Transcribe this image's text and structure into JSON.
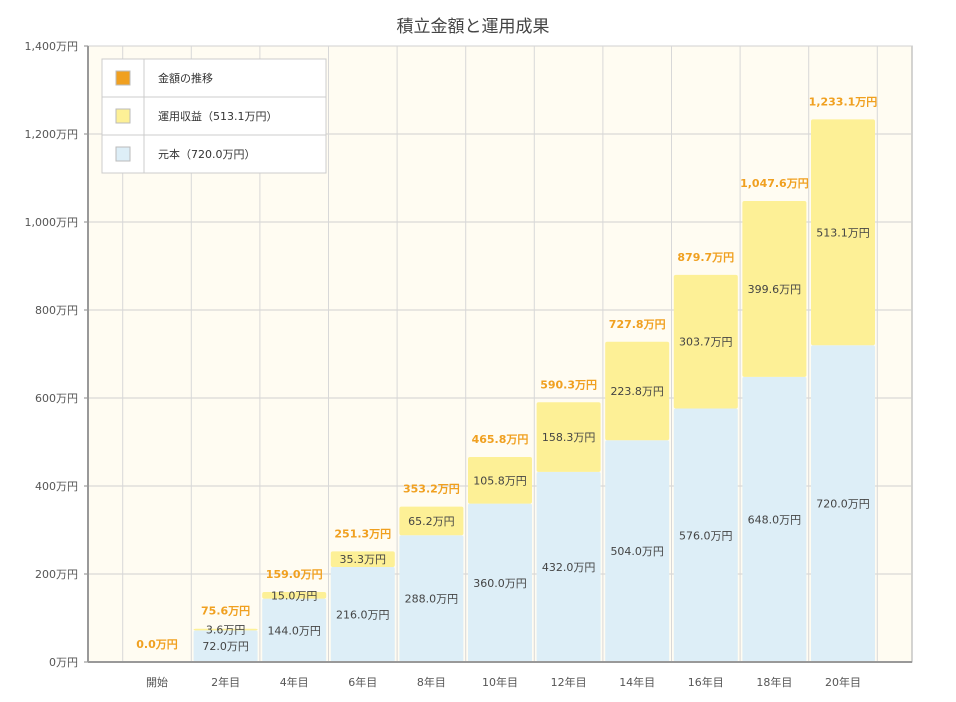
{
  "chart_data": {
    "type": "bar",
    "stacked": true,
    "title": "積立金額と運用成果",
    "categories": [
      "開始",
      "2年目",
      "4年目",
      "6年目",
      "8年目",
      "10年目",
      "12年目",
      "14年目",
      "16年目",
      "18年目",
      "20年目"
    ],
    "ylim": [
      0,
      1400
    ],
    "yticks": [
      0,
      200,
      400,
      600,
      800,
      1000,
      1200,
      1400
    ],
    "ytick_labels": [
      "0万円",
      "200万円",
      "400万円",
      "600万円",
      "800万円",
      "1,000万円",
      "1,200万円",
      "1,400万円"
    ],
    "series": [
      {
        "name": "元本（720.0万円）",
        "color": "#ddeef7",
        "values": [
          0,
          72.0,
          144.0,
          216.0,
          288.0,
          360.0,
          432.0,
          504.0,
          576.0,
          648.0,
          720.0
        ],
        "labels": [
          "",
          "72.0万円",
          "144.0万円",
          "216.0万円",
          "288.0万円",
          "360.0万円",
          "432.0万円",
          "504.0万円",
          "576.0万円",
          "648.0万円",
          "720.0万円"
        ]
      },
      {
        "name": "運用収益（513.1万円）",
        "color": "#fdf096",
        "values": [
          0,
          3.6,
          15.0,
          35.3,
          65.2,
          105.8,
          158.3,
          223.8,
          303.7,
          399.6,
          513.1
        ],
        "labels": [
          "",
          "3.6万円",
          "15.0万円",
          "35.3万円",
          "65.2万円",
          "105.8万円",
          "158.3万円",
          "223.8万円",
          "303.7万円",
          "399.6万円",
          "513.1万円"
        ]
      }
    ],
    "totals": {
      "name": "金額の推移",
      "color": "#f0a020",
      "values": [
        0.0,
        75.6,
        159.0,
        251.3,
        353.2,
        465.8,
        590.3,
        727.8,
        879.7,
        1047.6,
        1233.1
      ],
      "labels": [
        "0.0万円",
        "75.6万円",
        "159.0万円",
        "251.3万円",
        "353.2万円",
        "465.8万円",
        "590.3万円",
        "727.8万円",
        "879.7万円",
        "1,047.6万円",
        "1,233.1万円"
      ]
    },
    "legend": [
      "金額の推移",
      "運用収益（513.1万円）",
      "元本（720.0万円）"
    ],
    "legend_position": "top-left",
    "grid": true,
    "background_color": "#fffcf2"
  }
}
